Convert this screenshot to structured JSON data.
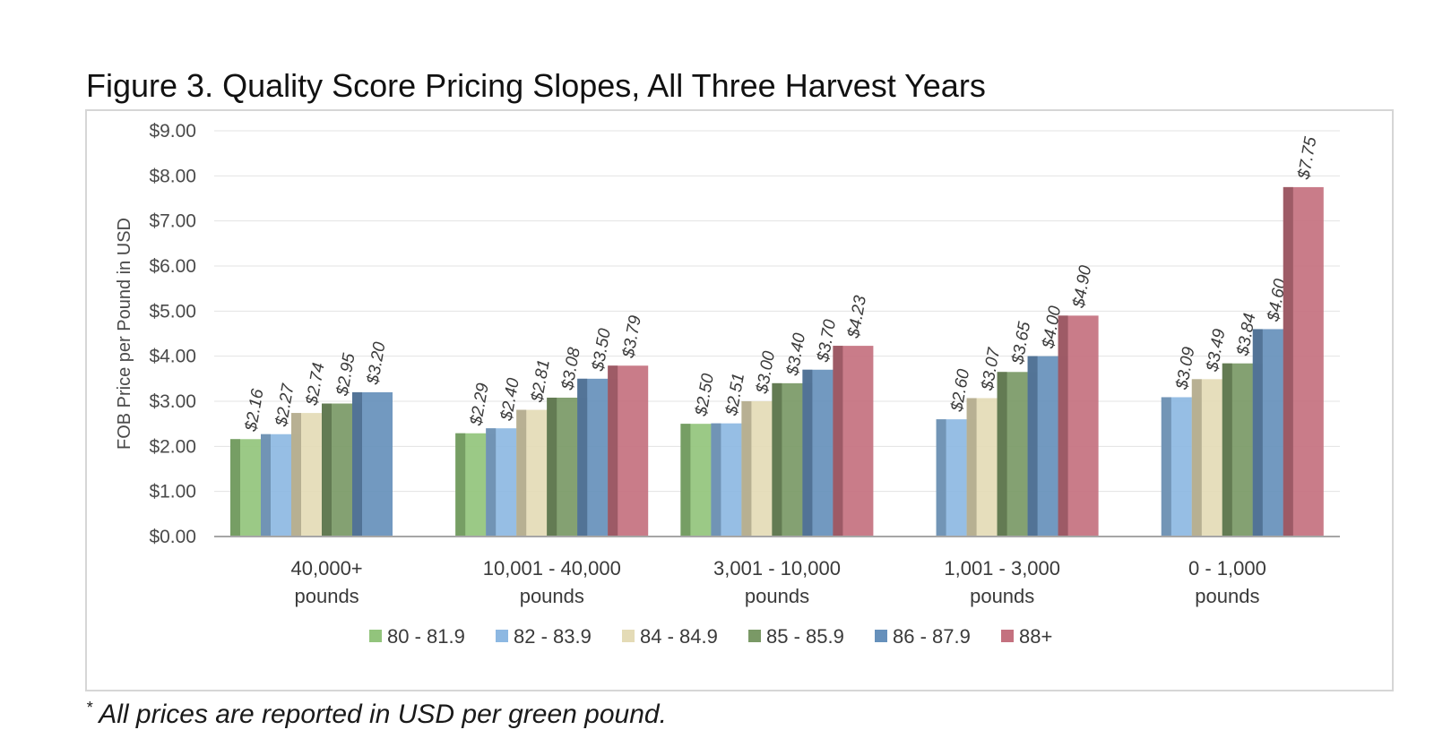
{
  "figure": {
    "title": "Figure 3. Quality Score Pricing Slopes, All Three Harvest Years",
    "footnote_marker": "*",
    "footnote": "All prices are reported in USD per green pound."
  },
  "chart_data": {
    "type": "bar",
    "title": "Figure 3. Quality Score Pricing Slopes, All Three Harvest Years",
    "xlabel": "",
    "ylabel": "FOB Price per Pound in USD",
    "ylim": [
      0,
      9
    ],
    "yticks": [
      "$0.00",
      "$1.00",
      "$2.00",
      "$3.00",
      "$4.00",
      "$5.00",
      "$6.00",
      "$7.00",
      "$8.00",
      "$9.00"
    ],
    "grid": true,
    "legend_position": "bottom",
    "categories": [
      [
        "40,000+",
        "pounds"
      ],
      [
        "10,001 - 40,000",
        "pounds"
      ],
      [
        "3,001 - 10,000",
        "pounds"
      ],
      [
        "1,001 - 3,000",
        "pounds"
      ],
      [
        "0 - 1,000",
        "pounds"
      ]
    ],
    "series": [
      {
        "name": "80 - 81.9",
        "color": "#92c47c",
        "values": [
          2.16,
          2.29,
          2.5,
          null,
          null
        ],
        "labels": [
          "$2.16",
          "$2.29",
          "$2.50",
          null,
          null
        ]
      },
      {
        "name": "82 - 83.9",
        "color": "#8db8e2",
        "values": [
          2.27,
          2.4,
          2.51,
          2.6,
          3.09
        ],
        "labels": [
          "$2.27",
          "$2.40",
          "$2.51",
          "$2.60",
          "$3.09"
        ]
      },
      {
        "name": "84 - 84.9",
        "color": "#e4dbb6",
        "values": [
          2.74,
          2.81,
          3.0,
          3.07,
          3.49
        ],
        "labels": [
          "$2.74",
          "$2.81",
          "$3.00",
          "$3.07",
          "$3.49"
        ]
      },
      {
        "name": "85 - 85.9",
        "color": "#7a9966",
        "values": [
          2.95,
          3.08,
          3.4,
          3.65,
          3.84
        ],
        "labels": [
          "$2.95",
          "$3.08",
          "$3.40",
          "$3.65",
          "$3.84"
        ]
      },
      {
        "name": "86 - 87.9",
        "color": "#6690bb",
        "values": [
          3.2,
          3.5,
          3.7,
          4.0,
          4.6
        ],
        "labels": [
          "$3.20",
          "$3.50",
          "$3.70",
          "$4.00",
          "$4.60"
        ]
      },
      {
        "name": "88+",
        "color": "#c4717f",
        "values": [
          null,
          3.79,
          4.23,
          4.9,
          7.75
        ],
        "labels": [
          null,
          "$3.79",
          "$4.23",
          "$4.90",
          "$7.75"
        ]
      }
    ]
  }
}
